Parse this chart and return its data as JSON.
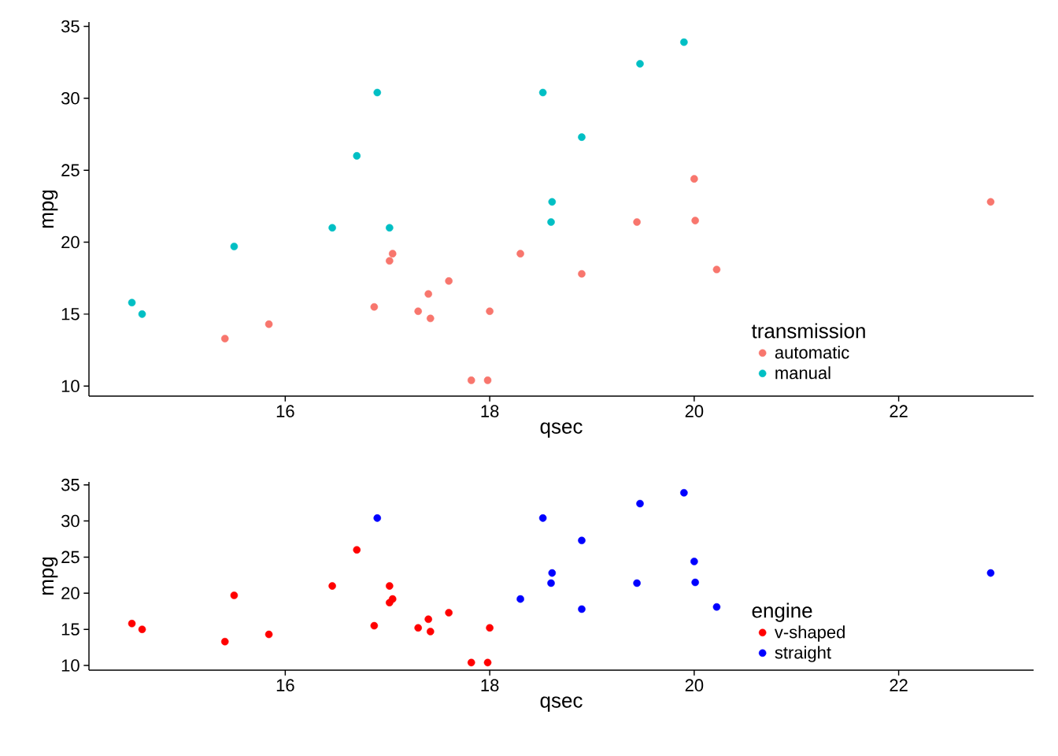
{
  "chart_data": [
    {
      "type": "scatter",
      "xlabel": "qsec",
      "ylabel": "mpg",
      "legend_title": "transmission",
      "legend": "bottom right",
      "grid": false,
      "xlim": [
        14.08,
        23.32
      ],
      "xticks": [
        16,
        18,
        20,
        22
      ],
      "ylim": [
        9.3,
        35.3
      ],
      "yticks": [
        10,
        15,
        20,
        25,
        30,
        35
      ],
      "series": [
        {
          "name": "automatic",
          "color": "#f8766d",
          "x": [
            19.44,
            17.02,
            20.22,
            15.84,
            20.0,
            22.9,
            18.3,
            18.9,
            17.4,
            17.6,
            18.0,
            17.98,
            17.82,
            17.42,
            20.01,
            16.87,
            17.3,
            15.41,
            17.05
          ],
          "values": [
            21.4,
            18.7,
            18.1,
            14.3,
            24.4,
            22.8,
            19.2,
            17.8,
            16.4,
            17.3,
            15.2,
            10.4,
            10.4,
            14.7,
            21.5,
            15.5,
            15.2,
            13.3,
            19.2
          ]
        },
        {
          "name": "manual",
          "color": "#00bfc4",
          "x": [
            16.46,
            17.02,
            18.61,
            19.47,
            18.52,
            19.9,
            18.9,
            16.7,
            16.9,
            14.5,
            15.5,
            14.6,
            18.6
          ],
          "values": [
            21.0,
            21.0,
            22.8,
            32.4,
            30.4,
            33.9,
            27.3,
            26.0,
            30.4,
            15.8,
            19.7,
            15.0,
            21.4
          ]
        }
      ]
    },
    {
      "type": "scatter",
      "xlabel": "qsec",
      "ylabel": "mpg",
      "legend_title": "engine",
      "legend": "bottom right",
      "grid": false,
      "xlim": [
        14.08,
        23.32
      ],
      "xticks": [
        16,
        18,
        20,
        22
      ],
      "ylim": [
        9.35,
        35.4
      ],
      "yticks": [
        10,
        15,
        20,
        25,
        30,
        35
      ],
      "series": [
        {
          "name": "v-shaped",
          "color": "#ff0000",
          "x": [
            16.46,
            17.02,
            17.02,
            15.84,
            17.4,
            17.6,
            18.0,
            17.98,
            17.82,
            17.42,
            16.87,
            17.3,
            15.41,
            17.05,
            16.7,
            14.5,
            15.5,
            14.6
          ],
          "values": [
            21.0,
            21.0,
            18.7,
            14.3,
            16.4,
            17.3,
            15.2,
            10.4,
            10.4,
            14.7,
            15.5,
            15.2,
            13.3,
            19.2,
            26.0,
            15.8,
            19.7,
            15.0
          ]
        },
        {
          "name": "straight",
          "color": "#0000ff",
          "x": [
            18.61,
            19.44,
            20.22,
            20.0,
            22.9,
            18.3,
            18.9,
            19.47,
            18.52,
            19.9,
            20.01,
            18.9,
            16.9,
            18.6
          ],
          "values": [
            22.8,
            21.4,
            18.1,
            24.4,
            22.8,
            19.2,
            17.8,
            32.4,
            30.4,
            33.9,
            21.5,
            27.3,
            30.4,
            21.4
          ]
        }
      ]
    }
  ]
}
